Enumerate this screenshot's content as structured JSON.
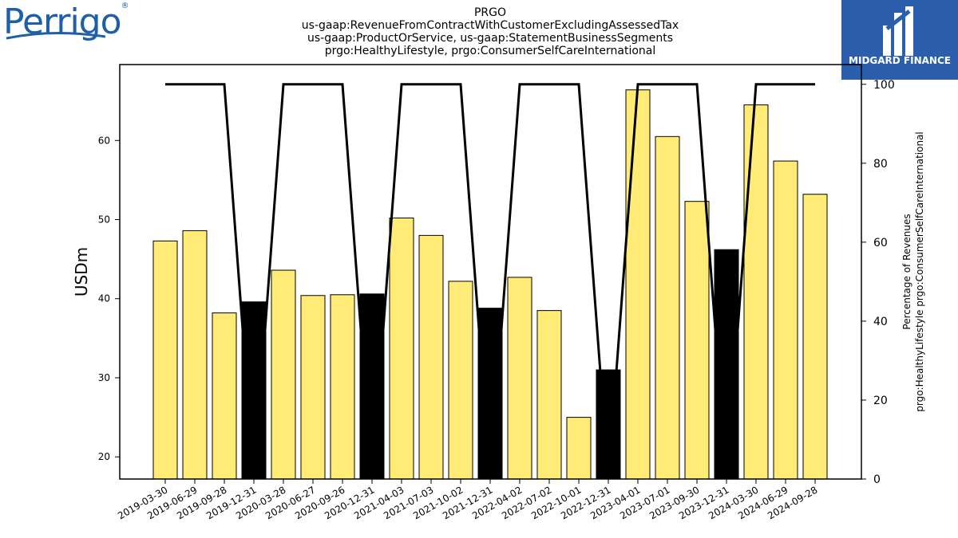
{
  "logos": {
    "left_text": "Perrigo",
    "right_text": "MIDGARD FINANCE"
  },
  "chart_data": {
    "type": "bar",
    "title_lines": [
      "PRGO",
      "us-gaap:RevenueFromContractWithCustomerExcludingAssessedTax",
      "us-gaap:ProductOrService, us-gaap:StatementBusinessSegments",
      "prgo:HealthyLifestyle, prgo:ConsumerSelfCareInternational"
    ],
    "categories": [
      "2019-03-30",
      "2019-06-29",
      "2019-09-28",
      "2019-12-31",
      "2020-03-28",
      "2020-06-27",
      "2020-09-26",
      "2020-12-31",
      "2021-04-03",
      "2021-07-03",
      "2021-10-02",
      "2021-12-31",
      "2022-04-02",
      "2022-07-02",
      "2022-10-01",
      "2022-12-31",
      "2023-04-01",
      "2023-07-01",
      "2023-09-30",
      "2023-12-31",
      "2024-03-30",
      "2024-06-29",
      "2024-09-28"
    ],
    "values": [
      47.3,
      48.6,
      38.2,
      39.6,
      43.6,
      40.4,
      40.5,
      40.6,
      50.2,
      48.0,
      42.2,
      38.8,
      42.7,
      38.5,
      25.0,
      31.0,
      66.4,
      60.5,
      52.3,
      46.2,
      64.5,
      57.4,
      53.2
    ],
    "year_end": [
      false,
      false,
      false,
      true,
      false,
      false,
      false,
      true,
      false,
      false,
      false,
      true,
      false,
      false,
      false,
      true,
      false,
      false,
      false,
      true,
      false,
      false,
      false
    ],
    "percentage": [
      100,
      100,
      100,
      0,
      100,
      100,
      100,
      0,
      100,
      100,
      100,
      0,
      100,
      100,
      100,
      0,
      100,
      100,
      100,
      0,
      100,
      100,
      100
    ],
    "ylabel": "USDm",
    "y2label_lines": [
      "Percentage of Revenues",
      "prgo:HealthyLifestyle prgo:ConsumerSelfCareInternational"
    ],
    "ylim": [
      17.2,
      69.6
    ],
    "y2lim": [
      0,
      105
    ],
    "yticks": [
      20,
      30,
      40,
      50,
      60
    ],
    "y2ticks": [
      0,
      20,
      40,
      60,
      80,
      100
    ],
    "grid": false,
    "colors": {
      "bar": "#ffeb76",
      "year_end_bar": "#000000",
      "line": "#000000"
    }
  }
}
